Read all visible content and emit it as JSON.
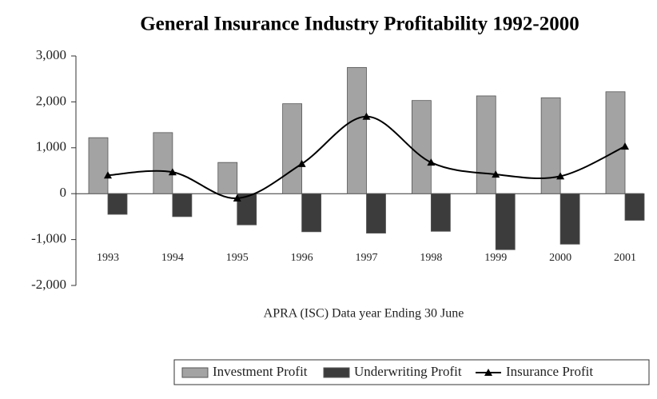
{
  "chart_data": {
    "type": "bar",
    "title": "General Insurance Industry Profitability 1992-2000",
    "x_label": "APRA (ISC) Data year Ending 30 June",
    "categories": [
      "1993",
      "1994",
      "1995",
      "1996",
      "1997",
      "1998",
      "1999",
      "2000",
      "2001"
    ],
    "series": [
      {
        "name": "Investment Profit",
        "type": "bar",
        "color": "#a3a3a3",
        "values": [
          1220,
          1330,
          680,
          1960,
          2750,
          2030,
          2130,
          2090,
          2220
        ]
      },
      {
        "name": "Underwriting Profit",
        "type": "bar",
        "color": "#3c3c3c",
        "values": [
          -450,
          -500,
          -680,
          -830,
          -860,
          -820,
          -1220,
          -1100,
          -580
        ]
      },
      {
        "name": "Insurance Profit",
        "type": "line",
        "color": "#000000",
        "values": [
          400,
          470,
          -100,
          650,
          1680,
          680,
          420,
          380,
          1030
        ]
      }
    ],
    "ylim": [
      -2000,
      3000
    ],
    "yticks": [
      {
        "value": -2000,
        "label": "-2,000"
      },
      {
        "value": -1000,
        "label": "-1,000"
      },
      0,
      {
        "value": 1000,
        "label": "1,000"
      },
      {
        "value": 2000,
        "label": "2,000"
      },
      {
        "value": 3000,
        "label": "3,000"
      }
    ],
    "legend": "bottom-right",
    "grid": false
  }
}
